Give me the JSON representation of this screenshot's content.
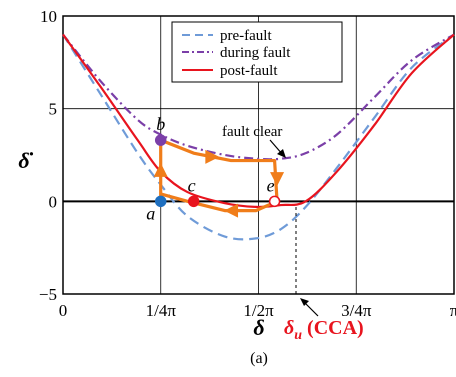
{
  "chart_data": {
    "type": "line",
    "xlabel": "δ",
    "ylabel": "δ̇",
    "xlim": [
      0,
      3.14159
    ],
    "ylim": [
      -5,
      10
    ],
    "xticks": [
      {
        "value": 0,
        "label": "0"
      },
      {
        "value": 0.7854,
        "label": "1/4π"
      },
      {
        "value": 1.5708,
        "label": "1/2π"
      },
      {
        "value": 2.3562,
        "label": "3/4π"
      },
      {
        "value": 3.14159,
        "label": "π"
      }
    ],
    "yticks": [
      {
        "value": -5,
        "label": "−5"
      },
      {
        "value": 0,
        "label": "0"
      },
      {
        "value": 5,
        "label": "5"
      },
      {
        "value": 10,
        "label": "10"
      }
    ],
    "grid": true,
    "legend": {
      "placement": "top-right",
      "entries": [
        "pre-fault",
        "during fault",
        "post-fault"
      ]
    },
    "series": [
      {
        "name": "pre-fault",
        "style": "dashed",
        "color": "#6f9bd8",
        "x": [
          0,
          0.3,
          0.6,
          0.785,
          1.0,
          1.3,
          1.55,
          1.75,
          1.95,
          2.2,
          2.5,
          2.8,
          3.1416
        ],
        "y": [
          9.0,
          5.8,
          2.6,
          0.9,
          -0.8,
          -1.9,
          -2.0,
          -1.5,
          -0.3,
          1.8,
          4.5,
          7.2,
          9.0
        ]
      },
      {
        "name": "during fault",
        "style": "dashdot",
        "color": "#7b3fa8",
        "x": [
          0,
          0.3,
          0.6,
          0.785,
          1.0,
          1.3,
          1.55,
          1.75,
          1.95,
          2.2,
          2.5,
          2.8,
          3.1416
        ],
        "y": [
          9.0,
          6.5,
          4.4,
          3.6,
          3.0,
          2.5,
          2.3,
          2.3,
          2.6,
          3.6,
          5.6,
          7.6,
          9.0
        ]
      },
      {
        "name": "post-fault",
        "style": "solid",
        "color": "#e8141e",
        "x": [
          0,
          0.3,
          0.6,
          0.785,
          1.0,
          1.3,
          1.55,
          1.75,
          1.95,
          2.2,
          2.5,
          2.8,
          3.1416
        ],
        "y": [
          9.0,
          6.2,
          3.3,
          1.6,
          0.5,
          -0.1,
          -0.3,
          -0.2,
          0.0,
          1.6,
          4.1,
          6.9,
          9.0
        ]
      }
    ],
    "trajectory": {
      "color": "#f07d1a",
      "x": [
        0.785,
        0.785,
        1.05,
        1.35,
        1.7,
        1.72,
        1.55,
        1.3,
        1.0,
        0.785,
        0.785
      ],
      "y": [
        0.0,
        3.3,
        2.6,
        2.2,
        2.2,
        0.0,
        -0.5,
        -0.5,
        0.0,
        0.4,
        2.4
      ],
      "arrows": [
        {
          "x": 0.785,
          "y": 1.7,
          "direction": "up"
        },
        {
          "x": 1.2,
          "y": 2.4,
          "direction": "right"
        },
        {
          "x": 1.72,
          "y": 1.2,
          "direction": "down"
        },
        {
          "x": 1.35,
          "y": -0.5,
          "direction": "left"
        }
      ]
    },
    "points": [
      {
        "label": "a",
        "x": 0.785,
        "y": 0.0,
        "color": "#1f6fbf",
        "filled": true
      },
      {
        "label": "b",
        "x": 0.785,
        "y": 3.3,
        "color": "#7b3fa8",
        "filled": true
      },
      {
        "label": "c",
        "x": 1.05,
        "y": 0.0,
        "color": "#e8141e",
        "filled": true
      },
      {
        "label": "e",
        "x": 1.7,
        "y": 0.0,
        "color": "#e8141e",
        "filled": false
      }
    ],
    "annotations": {
      "fault_clear": {
        "text": "fault clear",
        "x": 1.72,
        "y": 2.2
      },
      "delta_u": {
        "text_main": "δ",
        "text_sub": "u",
        "text_suffix": " (CCA)",
        "x": 1.7,
        "color": "#e8141e"
      }
    },
    "caption": "(a)"
  }
}
